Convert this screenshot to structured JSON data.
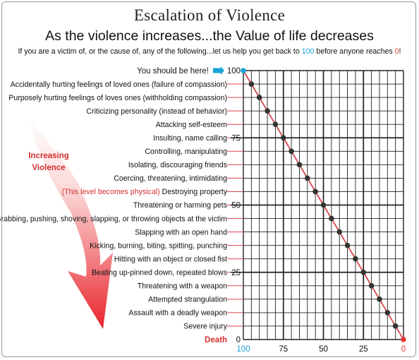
{
  "title": "Escalation of Violence",
  "subtitle": "As the violence increases...the Value of life decreases",
  "instruction": {
    "part1": "If you are a victim of, or the cause of, any of the following...let us help you get back to ",
    "value_top": "100",
    "part2": " before anyone reaches ",
    "value_bottom": "0",
    "part3": "!"
  },
  "arrow_label": [
    "Increasing",
    "Violence"
  ],
  "top_marker": "You should be here!",
  "death_label": "Death",
  "colors": {
    "line": "#d9434d",
    "point": "#333333",
    "start_point": "#1aa3d9",
    "end_point": "#e53935",
    "accent_blue": "#1aa3d9",
    "accent_red": "#e53935",
    "grid": "#222222"
  },
  "chart_data": {
    "type": "line",
    "x_axis": {
      "ticks": [
        100,
        75,
        50,
        25,
        0
      ],
      "range": [
        100,
        0
      ]
    },
    "y_axis": {
      "ticks": [
        100,
        75,
        50,
        25,
        0
      ],
      "range": [
        0,
        100
      ]
    },
    "grid": true,
    "levels": [
      {
        "label": "Accidentally hurting feelings of loved ones (failure of compassion)",
        "value": 95
      },
      {
        "label": "Purposely hurting feelings of loves ones (withholding compassion)",
        "value": 90
      },
      {
        "label": "Criticizing personality (instead of behavior)",
        "value": 85
      },
      {
        "label": "Attacking self-esteem",
        "value": 80
      },
      {
        "label": "Insulting, name calling",
        "value": 75
      },
      {
        "label": "Controlling, manipulating",
        "value": 70
      },
      {
        "label": "Isolating, discouraging friends",
        "value": 65
      },
      {
        "label": "Coercing, threatening, intimidating",
        "value": 60
      },
      {
        "label": "Destroying property",
        "note": "(This level becomes physical)",
        "value": 55
      },
      {
        "label": "Threatening or harming pets",
        "value": 50
      },
      {
        "label": "Grabbing, pushing, shoving, slapping, or throwing objects at the victim",
        "value": 45
      },
      {
        "label": "Slapping with an open hand",
        "value": 40
      },
      {
        "label": "Kicking, burning, biting, spitting, punching",
        "value": 35
      },
      {
        "label": "Hitting with an object or closed fist",
        "value": 30
      },
      {
        "label": "Beating up-pinned down, repeated blows",
        "value": 25
      },
      {
        "label": "Threatening with a weapon",
        "value": 20
      },
      {
        "label": "Attempted strangulation",
        "value": 15
      },
      {
        "label": "Assault with a deadly weapon",
        "value": 10
      },
      {
        "label": "Severe injury",
        "value": 5
      }
    ],
    "start": {
      "value": 100
    },
    "end": {
      "value": 0
    }
  }
}
